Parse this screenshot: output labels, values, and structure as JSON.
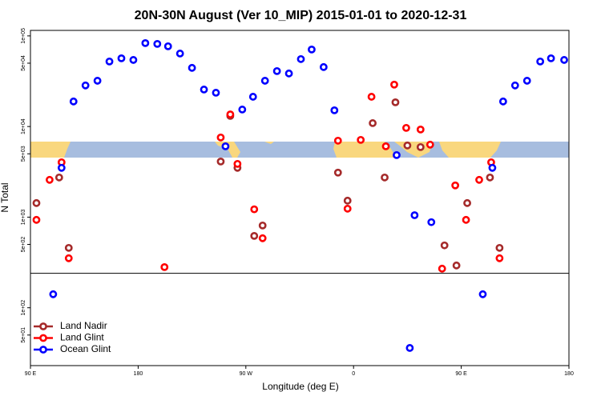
{
  "chart_data": {
    "type": "scatter",
    "title": "20N-30N August (Ver 10_MIP)   2015-01-01 to 2020-12-31",
    "x_label": "Longitude (deg E)",
    "y_label": "N Total",
    "log_y": true,
    "xlim": [
      90,
      540
    ],
    "ylim": [
      23,
      115000
    ],
    "reference_line": 240,
    "xticks": [
      {
        "value": 90,
        "label": "90 E"
      },
      {
        "value": 180,
        "label": "180"
      },
      {
        "value": 270,
        "label": "90 W"
      },
      {
        "value": 360,
        "label": "0"
      },
      {
        "value": 450,
        "label": "90 E"
      },
      {
        "value": 540,
        "label": "180"
      }
    ],
    "yticks": [
      {
        "value": 100000,
        "label": "1e+05"
      },
      {
        "value": 50000,
        "label": "5e+04"
      },
      {
        "value": 10000,
        "label": "1e+04"
      },
      {
        "value": 5000,
        "label": "5e+03"
      },
      {
        "value": 1000,
        "label": "1e+03"
      },
      {
        "value": 500,
        "label": "5e+02"
      },
      {
        "value": 100,
        "label": "1e+02"
      },
      {
        "value": 50,
        "label": "5e+01"
      }
    ],
    "legend": "bottom-left",
    "series": [
      {
        "name": "Land Nadir",
        "color": "#a52a2a",
        "x": [
          95,
          114,
          122,
          249,
          257,
          263,
          277,
          284,
          347,
          355,
          376,
          386,
          395,
          405,
          416,
          436,
          446,
          455,
          474,
          482
        ],
        "values": [
          1430,
          2740,
          458,
          4110,
          13100,
          3500,
          621,
          809,
          3100,
          1520,
          10900,
          2740,
          18500,
          6180,
          5930,
          488,
          293,
          1430,
          2740,
          458
        ]
      },
      {
        "name": "Land Glint",
        "color": "#ff0000",
        "x": [
          95,
          106,
          116,
          122,
          202,
          249,
          257,
          263,
          277,
          284,
          347,
          355,
          366,
          375,
          387,
          394,
          404,
          416,
          424,
          434,
          445,
          454,
          465,
          475,
          482
        ],
        "values": [
          933,
          2580,
          4030,
          352,
          281,
          7570,
          13600,
          3870,
          1220,
          585,
          6980,
          1240,
          7120,
          21300,
          6050,
          29000,
          9660,
          9270,
          6310,
          270,
          2240,
          933,
          2580,
          4030,
          352
        ]
      },
      {
        "name": "Ocean Glint",
        "color": "#0000ff",
        "x": [
          109,
          116,
          126,
          136,
          146,
          156,
          166,
          176,
          186,
          196,
          205,
          215,
          225,
          235,
          245,
          253,
          267,
          276,
          286,
          296,
          306,
          316,
          325,
          335,
          344,
          396,
          407,
          411,
          425,
          468,
          476,
          485,
          495,
          505,
          516,
          525,
          536
        ],
        "values": [
          141,
          3500,
          18900,
          28400,
          32000,
          52200,
          56600,
          54300,
          83300,
          81600,
          76800,
          63900,
          44400,
          25600,
          23600,
          6050,
          15400,
          21300,
          32000,
          40900,
          38500,
          55500,
          70800,
          45300,
          15100,
          4840,
          36,
          1050,
          880,
          141,
          3500,
          18900,
          28400,
          32000,
          52200,
          56600,
          54300
        ]
      }
    ]
  }
}
